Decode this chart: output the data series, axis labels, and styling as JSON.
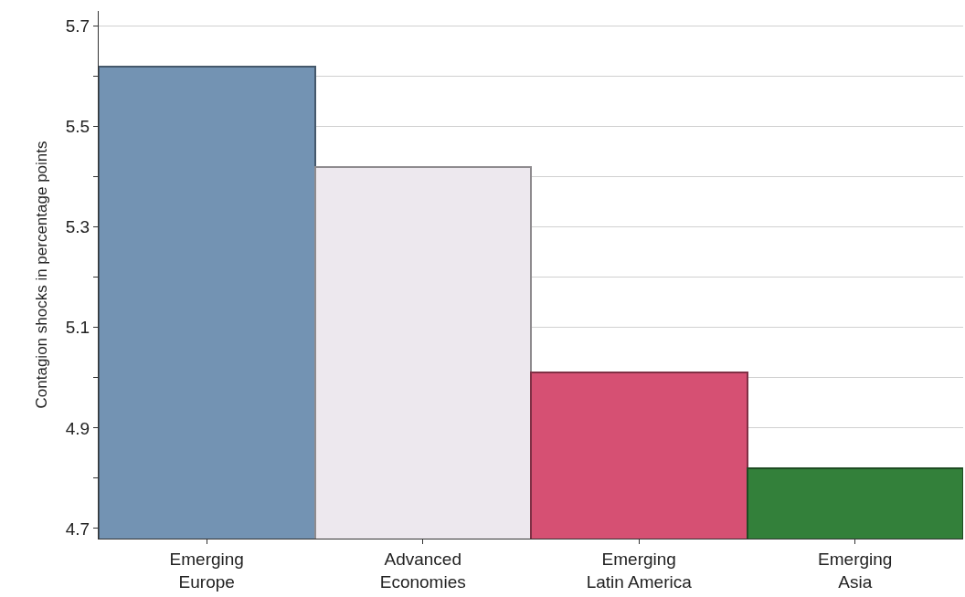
{
  "chart_data": {
    "type": "bar",
    "ylabel": "Contagion shocks in percentage points",
    "categories": [
      "Emerging Europe",
      "Advanced Economies",
      "Emerging Latin America",
      "Emerging Asia"
    ],
    "values": [
      5.62,
      5.42,
      5.01,
      4.82
    ],
    "colors": [
      "#7393b3",
      "#ede8ee",
      "#d65073",
      "#33803a"
    ],
    "ylim": [
      4.68,
      5.73
    ],
    "yticks": [
      4.7,
      {
        "value": 4.8,
        "label": null
      },
      4.9,
      {
        "value": 5.0,
        "label": null
      },
      5.1,
      {
        "value": 5.2,
        "label": null
      },
      5.3,
      {
        "value": 5.4,
        "label": null
      },
      5.5,
      {
        "value": 5.6,
        "label": null
      },
      5.7
    ],
    "grid": "y",
    "legend": false
  }
}
